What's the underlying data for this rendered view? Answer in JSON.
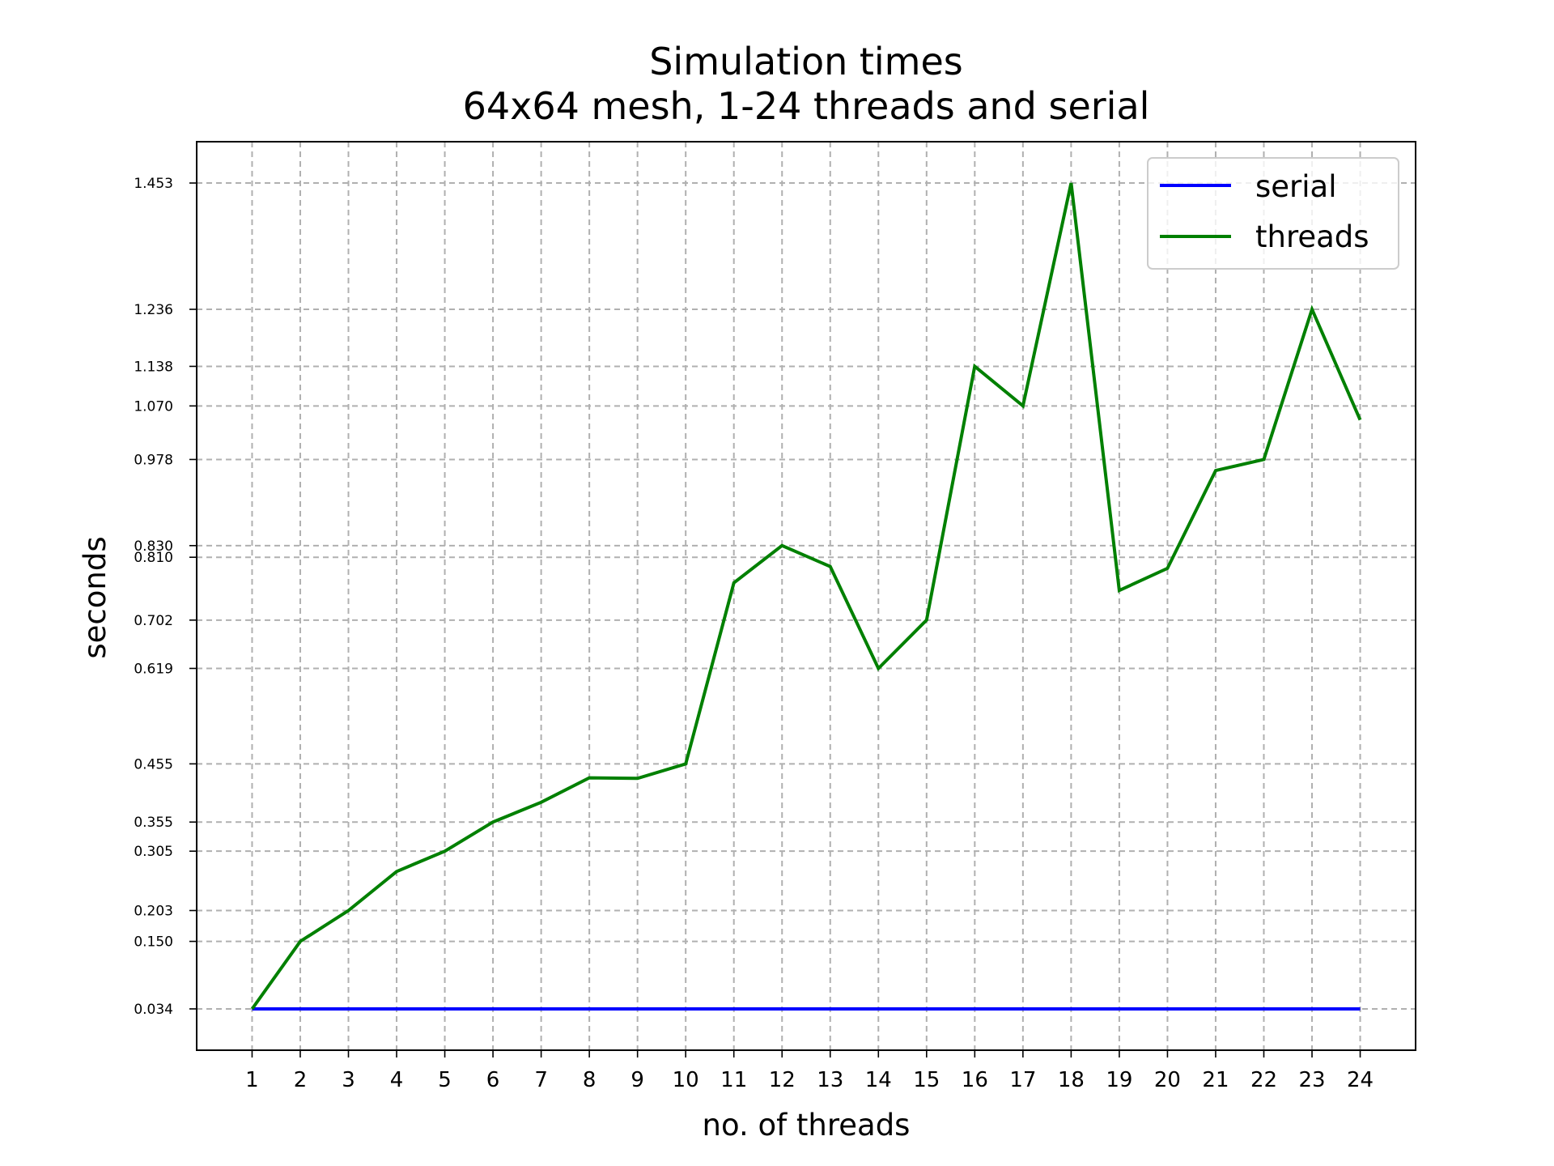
{
  "chart_data": {
    "type": "line",
    "title": "Simulation times",
    "subtitle": "64x64 mesh, 1-24 threads and serial",
    "xlabel": "no. of threads",
    "ylabel": "seconds",
    "x": [
      1,
      2,
      3,
      4,
      5,
      6,
      7,
      8,
      9,
      10,
      11,
      12,
      13,
      14,
      15,
      16,
      17,
      18,
      19,
      20,
      21,
      22,
      23,
      24
    ],
    "xlim": [
      -0.15,
      25.15
    ],
    "ylim": [
      -0.037,
      1.524
    ],
    "yticks": [
      0.034,
      0.15,
      0.203,
      0.305,
      0.355,
      0.455,
      0.619,
      0.702,
      0.81,
      0.83,
      0.978,
      1.07,
      1.138,
      1.236,
      1.453
    ],
    "ytick_labels": [
      "0.034",
      "0.150",
      "0.203",
      "0.305",
      "0.355",
      "0.455",
      "0.619",
      "0.702",
      "0.810",
      "0.830",
      "0.978",
      "1.070",
      "1.138",
      "1.236",
      "1.453"
    ],
    "grid": true,
    "legend_position": "top-right",
    "series": [
      {
        "name": "serial",
        "color": "#0000ff",
        "values": [
          0.034,
          0.034,
          0.034,
          0.034,
          0.034,
          0.034,
          0.034,
          0.034,
          0.034,
          0.034,
          0.034,
          0.034,
          0.034,
          0.034,
          0.034,
          0.034,
          0.034,
          0.034,
          0.034,
          0.034,
          0.034,
          0.034,
          0.034,
          0.034
        ]
      },
      {
        "name": "threads",
        "color": "#008000",
        "values": [
          0.034,
          0.15,
          0.203,
          0.27,
          0.305,
          0.355,
          0.389,
          0.431,
          0.43,
          0.455,
          0.766,
          0.83,
          0.794,
          0.619,
          0.702,
          1.138,
          1.07,
          1.453,
          0.753,
          0.791,
          0.959,
          0.978,
          1.236,
          1.046
        ]
      }
    ]
  }
}
